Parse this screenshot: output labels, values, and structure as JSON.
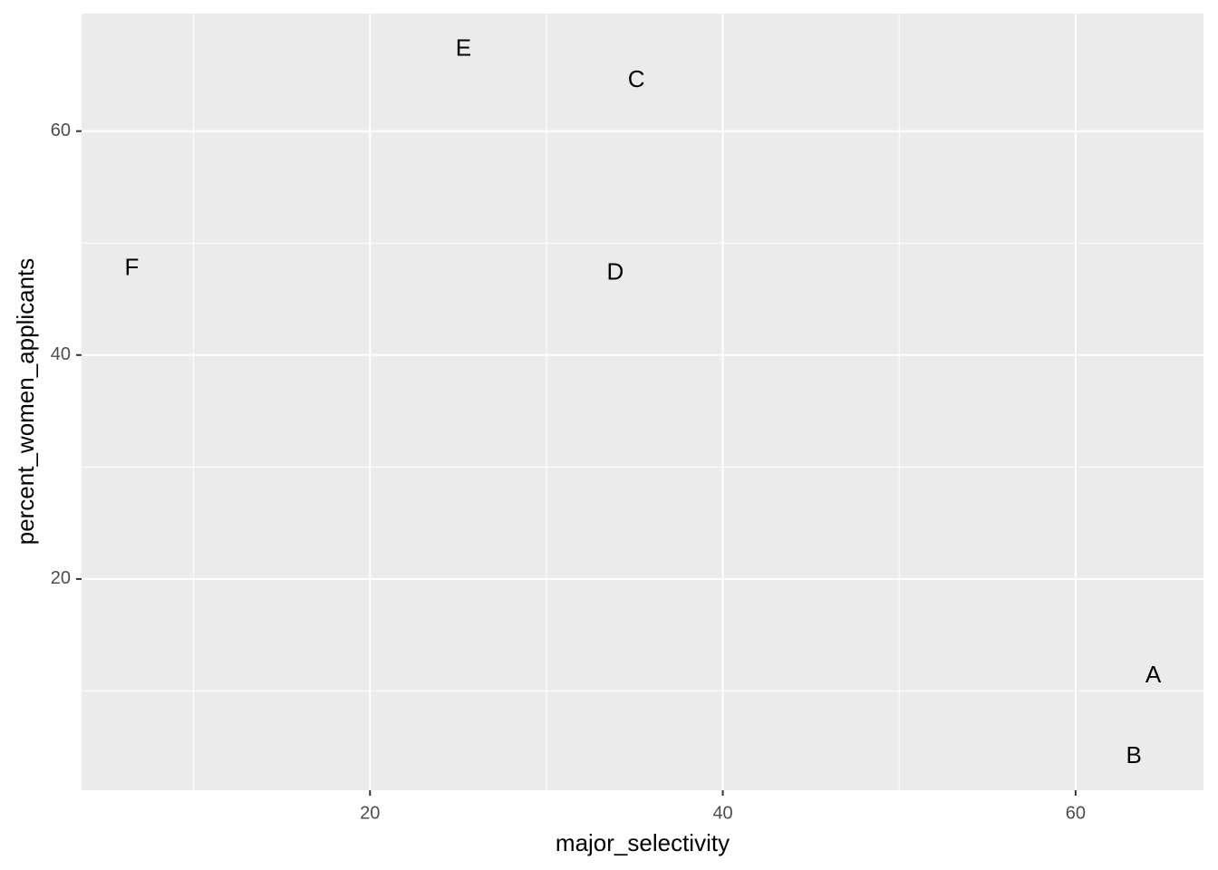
{
  "chart_data": {
    "type": "scatter",
    "x_label": "major_selectivity",
    "y_label": "percent_women_applicants",
    "labels": [
      "A",
      "B",
      "C",
      "D",
      "E",
      "F"
    ],
    "x": [
      64.4,
      63.3,
      35.1,
      33.9,
      25.3,
      6.5
    ],
    "values": [
      11.3,
      4.1,
      64.5,
      47.3,
      67.3,
      47.7
    ],
    "xlim": [
      3.65,
      67.25
    ],
    "ylim": [
      1.13,
      70.5
    ],
    "xticks": [
      20,
      40,
      60
    ],
    "yticks": [
      20,
      40,
      60
    ],
    "xminor": [
      10,
      30,
      50
    ],
    "yminor": [
      10,
      30,
      50
    ],
    "grid": true,
    "panel_color": "#ebebeb",
    "label_color": "#000000"
  }
}
